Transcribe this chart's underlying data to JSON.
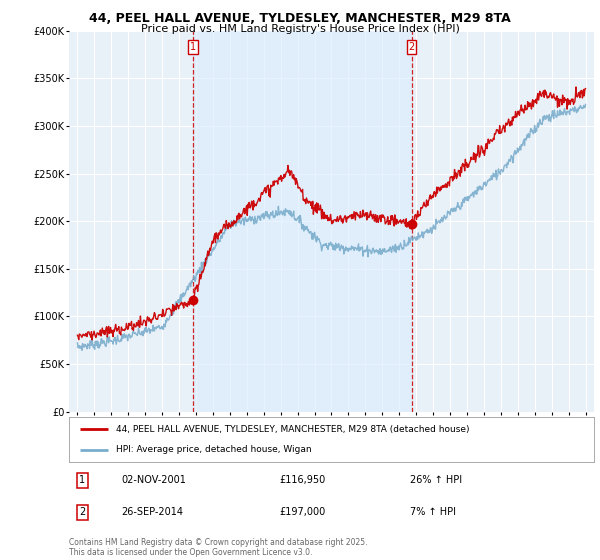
{
  "title1": "44, PEEL HALL AVENUE, TYLDESLEY, MANCHESTER, M29 8TA",
  "title2": "Price paid vs. HM Land Registry's House Price Index (HPI)",
  "legend_label1": "44, PEEL HALL AVENUE, TYLDESLEY, MANCHESTER, M29 8TA (detached house)",
  "legend_label2": "HPI: Average price, detached house, Wigan",
  "marker1_date": "02-NOV-2001",
  "marker1_price": "£116,950",
  "marker1_hpi": "26% ↑ HPI",
  "marker2_date": "26-SEP-2014",
  "marker2_price": "£197,000",
  "marker2_hpi": "7% ↑ HPI",
  "footer": "Contains HM Land Registry data © Crown copyright and database right 2025.\nThis data is licensed under the Open Government Licence v3.0.",
  "vline1_x": 2001.84,
  "vline2_x": 2014.73,
  "marker1_x": 2001.84,
  "marker1_y": 116950,
  "marker2_x": 2014.73,
  "marker2_y": 197000,
  "ylim": [
    0,
    400000
  ],
  "xlim": [
    1994.5,
    2025.5
  ],
  "red_color": "#cc0000",
  "blue_color": "#7aadcc",
  "vline_color": "#cc0000",
  "shade_color": "#ddeeff",
  "plot_bg": "#e8f0f8",
  "grid_color": "#ffffff"
}
